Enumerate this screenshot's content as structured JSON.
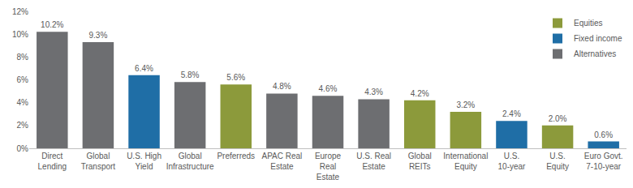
{
  "chart_data": {
    "type": "bar",
    "categories": [
      "Direct Lending",
      "Global Transport",
      "U.S. High Yield",
      "Global Infrastructure",
      "Preferreds",
      "APAC Real Estate",
      "Europe Real Estate",
      "U.S. Real Estate",
      "Global REITs",
      "International Equity",
      "U.S. 10-year",
      "U.S. Equity",
      "Euro Govt. 7-10-year"
    ],
    "series": [
      {
        "name": "Equities",
        "color": "#8c9a3b",
        "values": [
          null,
          null,
          null,
          null,
          5.6,
          null,
          null,
          null,
          4.2,
          3.2,
          null,
          2.0,
          null
        ],
        "value_labels": [
          null,
          null,
          null,
          null,
          "5.6%",
          null,
          null,
          null,
          "4.2%",
          "3.2%",
          null,
          "2.0%",
          null
        ]
      },
      {
        "name": "Fixed income",
        "color": "#1f6ea6",
        "values": [
          null,
          null,
          6.4,
          null,
          null,
          null,
          null,
          null,
          null,
          null,
          2.4,
          null,
          0.6
        ],
        "value_labels": [
          null,
          null,
          "6.4%",
          null,
          null,
          null,
          null,
          null,
          null,
          null,
          "2.4%",
          null,
          "0.6%"
        ]
      },
      {
        "name": "Alternatives",
        "color": "#6d6e71",
        "values": [
          10.2,
          9.3,
          null,
          5.8,
          null,
          4.8,
          4.6,
          4.3,
          null,
          null,
          null,
          null,
          null
        ],
        "value_labels": [
          "10.2%",
          "9.3%",
          null,
          "5.8%",
          null,
          "4.8%",
          "4.6%",
          "4.3%",
          null,
          null,
          null,
          null,
          null
        ]
      }
    ],
    "ylim": [
      0,
      12
    ],
    "yticks": [
      {
        "value": 0,
        "label": "0%"
      },
      {
        "value": 2,
        "label": "2%"
      },
      {
        "value": 4,
        "label": "4%"
      },
      {
        "value": 6,
        "label": "6%"
      },
      {
        "value": 8,
        "label": "8%"
      },
      {
        "value": 10,
        "label": "10%"
      },
      {
        "value": 12,
        "label": "12%"
      }
    ],
    "grid": false,
    "legend": "top right",
    "data_labels": true
  }
}
